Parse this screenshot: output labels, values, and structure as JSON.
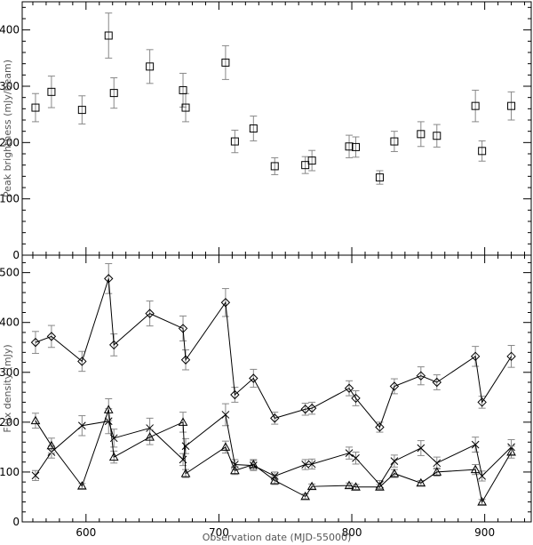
{
  "chart_data": [
    {
      "type": "scatter",
      "title": "",
      "xlabel": "",
      "ylabel": "Peak brightness (mJy/beam)",
      "xlim": [
        552,
        935
      ],
      "ylim": [
        0,
        450
      ],
      "xticks": [
        600,
        700,
        800,
        900
      ],
      "yticks": [
        0,
        100,
        200,
        300,
        400
      ],
      "show_x_ticklabels": false,
      "grid": false,
      "series": [
        {
          "marker": "square",
          "connected": false,
          "x": [
            562,
            574,
            597,
            617,
            621,
            648,
            673,
            675,
            705,
            712,
            726,
            742,
            765,
            770,
            798,
            803,
            821,
            832,
            852,
            864,
            893,
            898,
            920
          ],
          "y": [
            262,
            290,
            258,
            390,
            288,
            335,
            293,
            262,
            342,
            202,
            225,
            158,
            160,
            168,
            193,
            192,
            138,
            202,
            215,
            212,
            265,
            185,
            265
          ],
          "err": [
            25,
            28,
            25,
            40,
            27,
            30,
            30,
            25,
            30,
            20,
            22,
            15,
            15,
            18,
            20,
            18,
            12,
            18,
            22,
            20,
            28,
            18,
            25
          ]
        }
      ]
    },
    {
      "type": "line",
      "title": "",
      "xlabel": "Observation date (MJD-55000)",
      "ylabel": "Flux density (mJy)",
      "xlim": [
        552,
        935
      ],
      "ylim": [
        0,
        535
      ],
      "xticks": [
        600,
        700,
        800,
        900
      ],
      "yticks": [
        0,
        100,
        200,
        300,
        400,
        500
      ],
      "grid": false,
      "series": [
        {
          "marker": "diamond",
          "x": [
            562,
            574,
            597,
            617,
            621,
            648,
            673,
            675,
            705,
            712,
            726,
            742,
            765,
            770,
            798,
            803,
            821,
            832,
            852,
            864,
            893,
            898,
            920
          ],
          "y": [
            360,
            372,
            322,
            488,
            355,
            418,
            388,
            325,
            440,
            255,
            288,
            208,
            226,
            228,
            268,
            248,
            190,
            272,
            293,
            280,
            332,
            240,
            332
          ],
          "err": [
            22,
            22,
            20,
            30,
            22,
            25,
            25,
            20,
            28,
            15,
            18,
            12,
            12,
            12,
            15,
            15,
            10,
            15,
            18,
            15,
            20,
            12,
            22
          ]
        },
        {
          "marker": "x",
          "x": [
            562,
            574,
            597,
            617,
            621,
            648,
            673,
            675,
            705,
            712,
            726,
            742,
            765,
            770,
            798,
            803,
            821,
            832,
            852,
            864,
            893,
            898,
            920
          ],
          "y": [
            93,
            140,
            193,
            202,
            168,
            188,
            125,
            152,
            215,
            115,
            113,
            92,
            115,
            116,
            138,
            128,
            75,
            122,
            148,
            118,
            155,
            92,
            150
          ],
          "err": [
            10,
            12,
            20,
            25,
            18,
            20,
            12,
            15,
            22,
            10,
            10,
            8,
            10,
            10,
            12,
            12,
            8,
            12,
            15,
            12,
            15,
            10,
            15
          ]
        },
        {
          "marker": "triangle",
          "x": [
            562,
            574,
            597,
            617,
            621,
            648,
            673,
            675,
            705,
            712,
            726,
            742,
            765,
            770,
            798,
            803,
            821,
            832,
            852,
            864,
            893,
            898,
            920
          ],
          "y": [
            203,
            153,
            72,
            225,
            130,
            170,
            200,
            97,
            150,
            103,
            115,
            83,
            51,
            71,
            73,
            70,
            70,
            97,
            78,
            100,
            105,
            40,
            140
          ],
          "err": [
            15,
            15,
            5,
            22,
            12,
            15,
            20,
            8,
            12,
            8,
            10,
            8,
            5,
            5,
            5,
            5,
            5,
            8,
            5,
            8,
            10,
            5,
            12
          ]
        }
      ]
    }
  ]
}
